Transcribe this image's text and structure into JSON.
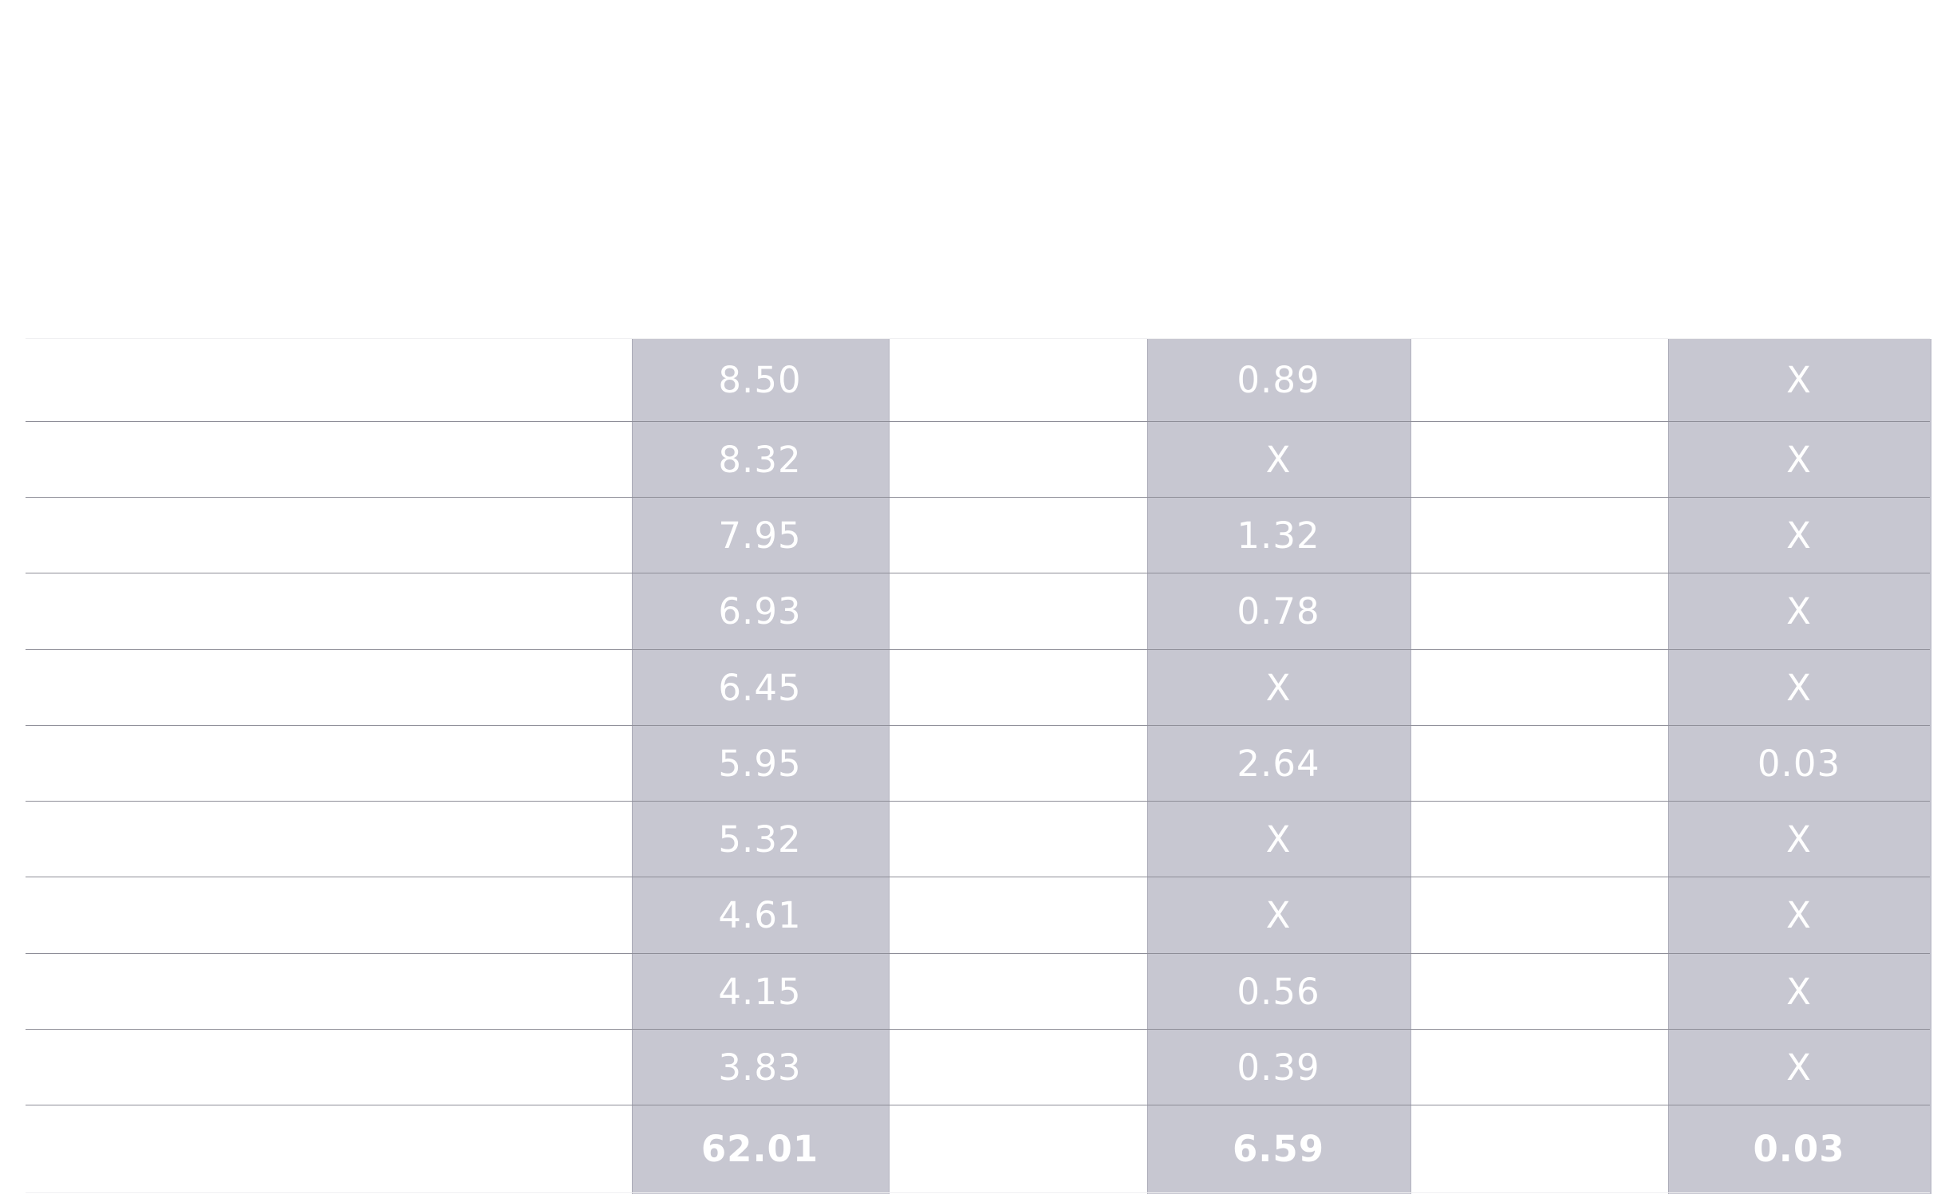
{
  "table": {
    "rows": [
      {
        "c1": "8.50",
        "c2": "0.89",
        "c3": "X"
      },
      {
        "c1": "8.32",
        "c2": "X",
        "c3": "X"
      },
      {
        "c1": "7.95",
        "c2": "1.32",
        "c3": "X"
      },
      {
        "c1": "6.93",
        "c2": "0.78",
        "c3": "X"
      },
      {
        "c1": "6.45",
        "c2": "X",
        "c3": "X"
      },
      {
        "c1": "5.95",
        "c2": "2.64",
        "c3": "0.03"
      },
      {
        "c1": "5.32",
        "c2": "X",
        "c3": "X"
      },
      {
        "c1": "4.61",
        "c2": "X",
        "c3": "X"
      },
      {
        "c1": "4.15",
        "c2": "0.56",
        "c3": "X"
      },
      {
        "c1": "3.83",
        "c2": "0.39",
        "c3": "X"
      }
    ],
    "total": {
      "c1": "62.01",
      "c2": "6.59",
      "c3": "0.03"
    }
  },
  "colors": {
    "shaded_column": "#c7c7d1",
    "cell_text": "#ffffff",
    "row_divider": "#8e8e98"
  }
}
